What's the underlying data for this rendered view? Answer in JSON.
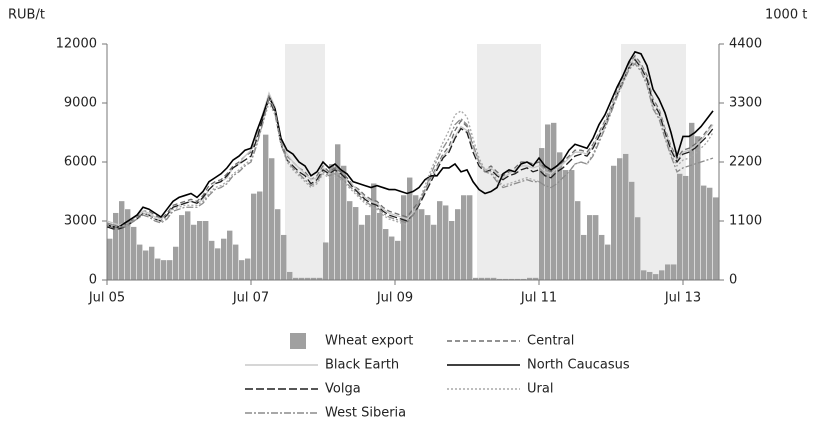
{
  "chart_data": {
    "type": "bar-line",
    "y_label": "RUB/t",
    "y2_label": "1000 t",
    "categories": [
      "Jul 05",
      null,
      null,
      null,
      null,
      null,
      null,
      null,
      null,
      null,
      null,
      null,
      null,
      null,
      null,
      null,
      null,
      null,
      null,
      null,
      null,
      null,
      null,
      null,
      "Jul 07",
      null,
      null,
      null,
      null,
      null,
      null,
      null,
      null,
      null,
      null,
      null,
      null,
      null,
      null,
      null,
      null,
      null,
      null,
      null,
      null,
      null,
      null,
      null,
      "Jul 09",
      null,
      null,
      null,
      null,
      null,
      null,
      null,
      null,
      null,
      null,
      null,
      null,
      null,
      null,
      null,
      null,
      null,
      null,
      null,
      null,
      null,
      null,
      null,
      "Jul 11",
      null,
      null,
      null,
      null,
      null,
      null,
      null,
      null,
      null,
      null,
      null,
      null,
      null,
      null,
      null,
      null,
      null,
      null,
      null,
      null,
      null,
      null,
      null,
      "Jul 13",
      null,
      null,
      null,
      null,
      null
    ],
    "ylim": [
      0,
      12000
    ],
    "yticks": [
      0,
      3000,
      6000,
      9000,
      12000
    ],
    "y2lim": [
      0,
      4400
    ],
    "y2ticks": [
      0,
      1100,
      2200,
      3300,
      4400
    ],
    "grid": false,
    "series": [
      {
        "name": "Wheat export",
        "type": "bar",
        "axis": "y2",
        "color": "#a0a0a0",
        "values": [
          770,
          1250,
          1470,
          1320,
          990,
          660,
          550,
          620,
          400,
          370,
          370,
          620,
          1210,
          1280,
          1030,
          1100,
          1100,
          730,
          590,
          770,
          920,
          660,
          370,
          400,
          1610,
          1650,
          2710,
          2270,
          1320,
          840,
          150,
          40,
          40,
          40,
          40,
          40,
          700,
          2160,
          2530,
          2130,
          1470,
          1360,
          1030,
          1210,
          1800,
          1250,
          950,
          810,
          730,
          1580,
          1910,
          1580,
          1320,
          1210,
          1030,
          1470,
          1390,
          1100,
          1320,
          1580,
          1580,
          40,
          40,
          40,
          40,
          20,
          20,
          20,
          20,
          20,
          40,
          40,
          2460,
          2900,
          2930,
          2380,
          2050,
          2050,
          1470,
          840,
          1210,
          1210,
          840,
          660,
          2130,
          2270,
          2350,
          1830,
          1170,
          180,
          150,
          110,
          180,
          290,
          290,
          1980,
          1940,
          2930,
          2680,
          1760,
          1720,
          1540
        ]
      },
      {
        "name": "Central",
        "type": "line",
        "color": "#6e6e6e",
        "dash": "5 3",
        "values": [
          2900,
          2800,
          2700,
          2800,
          3000,
          3200,
          3500,
          3500,
          3300,
          3100,
          3400,
          3800,
          3900,
          4000,
          4100,
          4000,
          4300,
          4800,
          5000,
          5100,
          5400,
          5800,
          6000,
          6300,
          6500,
          7400,
          8300,
          9400,
          8600,
          7100,
          6300,
          6000,
          5700,
          5500,
          5100,
          5300,
          5800,
          5500,
          5700,
          5500,
          5200,
          4800,
          4600,
          4300,
          4100,
          4000,
          3700,
          3500,
          3400,
          3300,
          3200,
          3600,
          4000,
          4600,
          5200,
          5800,
          6400,
          6800,
          7600,
          8100,
          7800,
          6800,
          6000,
          5600,
          5800,
          5500,
          5300,
          5500,
          5700,
          6000,
          6000,
          5900,
          6000,
          5700,
          5500,
          5800,
          6000,
          6300,
          6600,
          6600,
          6500,
          6900,
          7500,
          8100,
          8800,
          9600,
          10300,
          11000,
          11400,
          11000,
          10400,
          9200,
          8700,
          7700,
          6800,
          6200,
          6600,
          6700,
          6900,
          7200,
          7600,
          8000
        ]
      },
      {
        "name": "Black Earth",
        "type": "line",
        "color": "#c8c8c8",
        "dash": "none",
        "values": [
          3000,
          2900,
          2800,
          2900,
          3100,
          3300,
          3500,
          3400,
          3200,
          3100,
          3300,
          3700,
          3800,
          3900,
          4000,
          3900,
          4100,
          4600,
          4900,
          5000,
          5200,
          5700,
          5900,
          6300,
          6600,
          7500,
          8500,
          9500,
          8800,
          7200,
          6400,
          6000,
          5700,
          5400,
          5100,
          5200,
          5700,
          5400,
          5600,
          5400,
          5100,
          4800,
          4500,
          4200,
          4000,
          3900,
          3600,
          3400,
          3300,
          3200,
          3100,
          3400,
          3900,
          4500,
          5100,
          5700,
          6300,
          6600,
          7300,
          7800,
          7600,
          6700,
          6000,
          5600,
          5700,
          5400,
          5200,
          5400,
          5600,
          5800,
          5800,
          5700,
          5800,
          5500,
          5400,
          5700,
          5900,
          6200,
          6500,
          6500,
          6400,
          6800,
          7400,
          8000,
          8700,
          9500,
          10200,
          10900,
          11300,
          10900,
          10300,
          9100,
          8600,
          7600,
          6700,
          6100,
          6500,
          6600,
          6800,
          7100,
          7500,
          7900
        ]
      },
      {
        "name": "North Caucasus",
        "type": "line",
        "color": "#000000",
        "dash": "none",
        "values": [
          2800,
          2700,
          2700,
          2900,
          3100,
          3300,
          3700,
          3600,
          3400,
          3200,
          3600,
          4000,
          4200,
          4300,
          4400,
          4200,
          4500,
          5000,
          5200,
          5400,
          5700,
          6100,
          6300,
          6600,
          6700,
          7600,
          8400,
          9300,
          8700,
          7200,
          6600,
          6400,
          6000,
          5800,
          5300,
          5500,
          6000,
          5700,
          5900,
          5600,
          5400,
          5000,
          4900,
          4800,
          4700,
          4800,
          4700,
          4600,
          4600,
          4500,
          4400,
          4500,
          4700,
          5100,
          5300,
          5300,
          5700,
          5700,
          5900,
          5500,
          5600,
          5000,
          4600,
          4400,
          4500,
          4700,
          5400,
          5600,
          5500,
          5900,
          6000,
          5800,
          6200,
          5800,
          5600,
          5800,
          6100,
          6600,
          6900,
          6800,
          6700,
          7200,
          7900,
          8400,
          9100,
          9800,
          10400,
          11100,
          11600,
          11500,
          10900,
          9700,
          9200,
          8500,
          7500,
          6300,
          7300,
          7300,
          7500,
          7800,
          8200,
          8600
        ]
      },
      {
        "name": "Volga",
        "type": "line",
        "color": "#1e1e1e",
        "dash": "8 3",
        "values": [
          2700,
          2600,
          2600,
          2700,
          2900,
          3100,
          3400,
          3300,
          3100,
          3000,
          3300,
          3700,
          3800,
          3900,
          4000,
          3900,
          4200,
          4600,
          4900,
          5000,
          5300,
          5700,
          5900,
          6100,
          6300,
          7200,
          8200,
          9200,
          8500,
          6900,
          6100,
          5800,
          5500,
          5300,
          4900,
          5100,
          5600,
          5400,
          5600,
          5400,
          5100,
          4700,
          4400,
          4100,
          3900,
          3800,
          3500,
          3300,
          3200,
          3100,
          3000,
          3300,
          3800,
          4400,
          5000,
          5600,
          6200,
          6500,
          7200,
          7700,
          7500,
          6500,
          5800,
          5500,
          5600,
          5300,
          5100,
          5300,
          5400,
          5600,
          5700,
          5500,
          5600,
          5300,
          5200,
          5500,
          5700,
          6000,
          6300,
          6400,
          6300,
          6700,
          7300,
          7900,
          8600,
          9400,
          10100,
          10800,
          11200,
          10800,
          10200,
          9000,
          8500,
          7500,
          6600,
          6000,
          6400,
          6500,
          6700,
          7000,
          7300,
          7700
        ]
      },
      {
        "name": "Ural",
        "type": "line",
        "color": "#a8a8a8",
        "dash": "2 2",
        "values": [
          2800,
          2700,
          2700,
          2800,
          3000,
          3200,
          3400,
          3300,
          3100,
          3000,
          3200,
          3600,
          3700,
          3800,
          3800,
          3800,
          4000,
          4400,
          4700,
          4800,
          5000,
          5400,
          5600,
          5900,
          6100,
          7000,
          8000,
          9000,
          8400,
          6900,
          6000,
          5600,
          5300,
          5000,
          4700,
          4900,
          5400,
          5200,
          5300,
          5100,
          4800,
          4500,
          4200,
          3900,
          3700,
          3600,
          3300,
          3100,
          3000,
          2900,
          2800,
          3300,
          4000,
          4800,
          5600,
          6300,
          7000,
          7600,
          8400,
          8600,
          8300,
          7200,
          6200,
          5600,
          5500,
          5100,
          4800,
          4900,
          5000,
          5100,
          5200,
          5100,
          5000,
          4800,
          4700,
          4900,
          5200,
          5500,
          5900,
          6000,
          5900,
          6400,
          7100,
          7800,
          8600,
          9400,
          10100,
          10800,
          11100,
          10700,
          10000,
          8800,
          8300,
          7300,
          6400,
          5800,
          6100,
          6200,
          6400,
          6700,
          7000,
          7500
        ]
      },
      {
        "name": "West Siberia",
        "type": "line",
        "color": "#8c8c8c",
        "dash": "7 2 2 2",
        "values": [
          2900,
          2800,
          2700,
          2700,
          2900,
          3100,
          3300,
          3200,
          3000,
          2900,
          3100,
          3500,
          3600,
          3700,
          3700,
          3700,
          3900,
          4300,
          4600,
          4700,
          4900,
          5300,
          5500,
          5800,
          6000,
          6900,
          8000,
          9300,
          8600,
          7000,
          6100,
          5700,
          5400,
          5100,
          4800,
          5000,
          5500,
          5300,
          5400,
          5200,
          4900,
          4600,
          4300,
          4000,
          3800,
          3700,
          3400,
          3200,
          3100,
          3000,
          2900,
          3300,
          3900,
          4600,
          5400,
          6100,
          6700,
          7200,
          7900,
          8200,
          7900,
          6900,
          6000,
          5500,
          5400,
          5000,
          4700,
          4800,
          4900,
          5000,
          5100,
          5000,
          5000,
          4800,
          4700,
          4900,
          5200,
          5500,
          5900,
          6000,
          5900,
          6300,
          7000,
          7700,
          8500,
          9300,
          10000,
          10700,
          11000,
          10600,
          9900,
          8700,
          8200,
          7200,
          6300,
          5500,
          5700,
          5800,
          5900,
          6000,
          6100,
          6200
        ]
      }
    ]
  }
}
